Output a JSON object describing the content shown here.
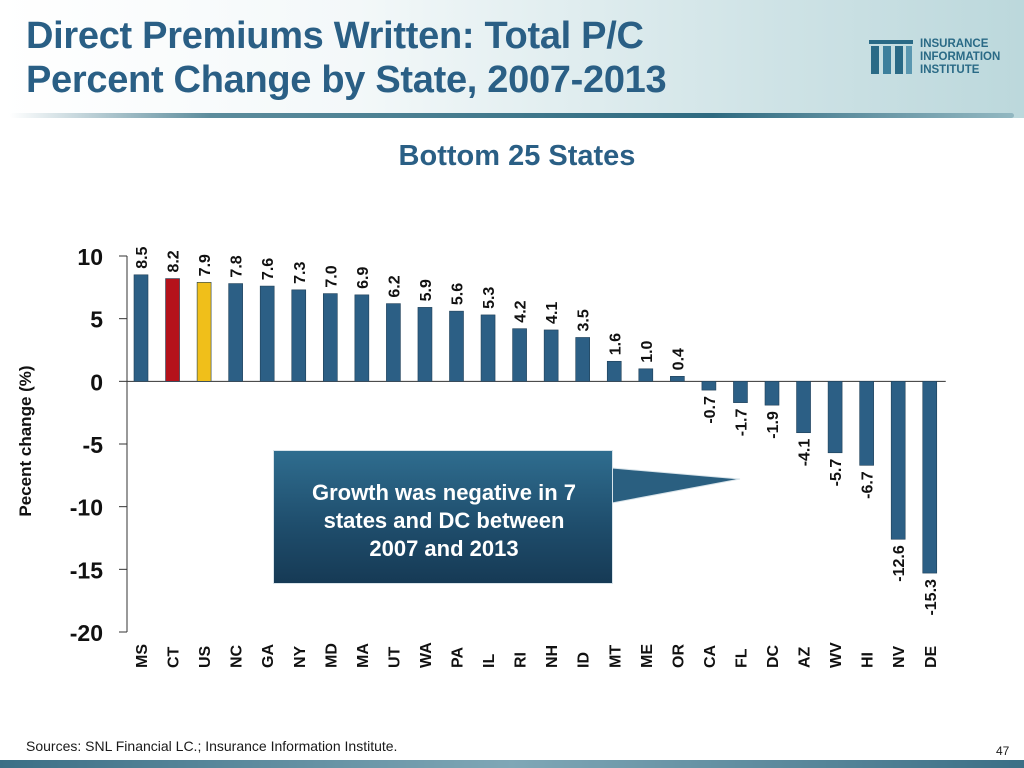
{
  "slide": {
    "title_line1": "Direct Premiums Written: Total P/C",
    "title_line2": "Percent Change by State, 2007-2013",
    "logo_line1": "INSURANCE",
    "logo_line2": "INFORMATION",
    "logo_line3": "INSTITUTE",
    "callout_line1": "Growth was negative in 7",
    "callout_line2": "states and DC between",
    "callout_line3": "2007 and 2013",
    "sources": "Sources:  SNL Financial LC.; Insurance Information Institute.",
    "page_number": "47"
  },
  "colors": {
    "bar_default": "#2c5f85",
    "bar_ct": "#b5121b",
    "bar_us": "#f0bf1a",
    "title": "#2a5f85",
    "axis": "#333333"
  },
  "chart_data": {
    "type": "bar",
    "title": "Bottom 25 States",
    "xlabel": "",
    "ylabel": "Pecent change (%)",
    "ylim": [
      -20,
      10
    ],
    "yticks": [
      10,
      5,
      0,
      -5,
      -10,
      -15,
      -20
    ],
    "categories": [
      "MS",
      "CT",
      "US",
      "NC",
      "GA",
      "NY",
      "MD",
      "MA",
      "UT",
      "WA",
      "PA",
      "IL",
      "RI",
      "NH",
      "ID",
      "MT",
      "ME",
      "OR",
      "CA",
      "FL",
      "DC",
      "AZ",
      "WV",
      "HI",
      "NV",
      "DE"
    ],
    "values": [
      8.5,
      8.2,
      7.9,
      7.8,
      7.6,
      7.3,
      7.0,
      6.9,
      6.2,
      5.9,
      5.6,
      5.3,
      4.2,
      4.1,
      3.5,
      1.6,
      1.0,
      0.4,
      -0.7,
      -1.7,
      -1.9,
      -4.1,
      -5.7,
      -6.7,
      -12.6,
      -15.3
    ],
    "labels": [
      "8.5",
      "8.2",
      "7.9",
      "7.8",
      "7.6",
      "7.3",
      "7.0",
      "6.9",
      "6.2",
      "5.9",
      "5.6",
      "5.3",
      "4.2",
      "4.1",
      "3.5",
      "1.6",
      "1.0",
      "0.4",
      "-0.7",
      "-1.7",
      "-1.9",
      "-4.1",
      "-5.7",
      "-6.7",
      "-12.6",
      "-15.3"
    ],
    "highlight": {
      "CT": "red",
      "US": "yellow"
    },
    "grid": false
  }
}
